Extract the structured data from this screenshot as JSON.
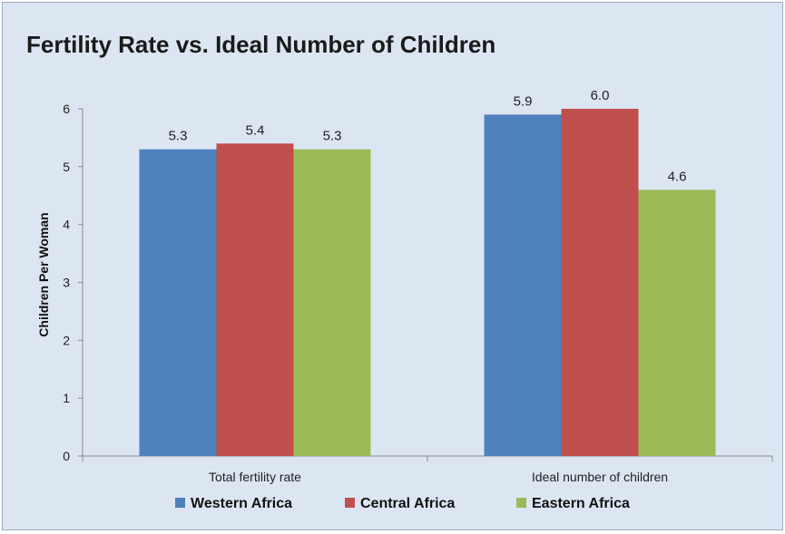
{
  "chart_data": {
    "type": "bar",
    "title": "Fertility Rate vs. Ideal Number of Children",
    "xlabel": "",
    "ylabel": "Children Per Woman",
    "ylim": [
      0,
      6
    ],
    "yticks": [
      0,
      1,
      2,
      3,
      4,
      5,
      6
    ],
    "categories": [
      "Total fertility rate",
      "Ideal number of children"
    ],
    "series": [
      {
        "name": "Western Africa",
        "color": "#4f81bd",
        "values": [
          5.3,
          5.9
        ],
        "labels": [
          "5.3",
          "5.9"
        ]
      },
      {
        "name": "Central Africa",
        "color": "#c0504d",
        "values": [
          5.4,
          6.0
        ],
        "labels": [
          "5.4",
          "6.0"
        ]
      },
      {
        "name": "Eastern Africa",
        "color": "#9bbb59",
        "values": [
          5.3,
          4.6
        ],
        "labels": [
          "5.3",
          "4.6"
        ]
      }
    ],
    "legend_position": "bottom",
    "grid": false,
    "background_color": "#dce6f2"
  }
}
